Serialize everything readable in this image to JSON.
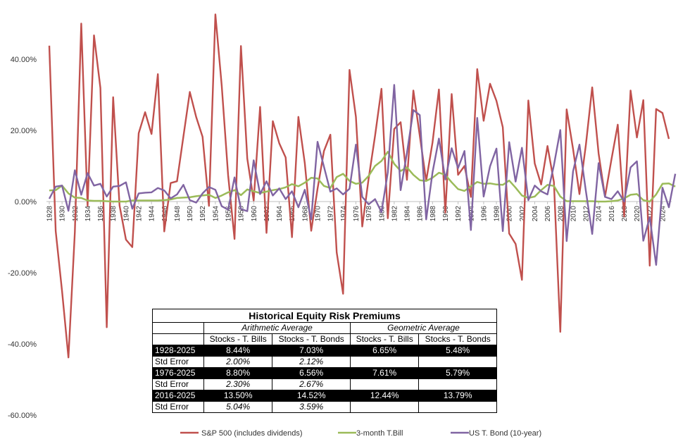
{
  "chart_data": {
    "type": "line",
    "x_tick_labels": [
      "1928",
      "1930",
      "1932",
      "1934",
      "1936",
      "1938",
      "1940",
      "1942",
      "1944",
      "1946",
      "1948",
      "1950",
      "1952",
      "1954",
      "1956",
      "1958",
      "1960",
      "1962",
      "1964",
      "1966",
      "1968",
      "1970",
      "1972",
      "1974",
      "1976",
      "1978",
      "1980",
      "1982",
      "1984",
      "1986",
      "1988",
      "1990",
      "1992",
      "1994",
      "1996",
      "1998",
      "2000",
      "2002",
      "2004",
      "2006",
      "2008",
      "2010",
      "2012",
      "2014",
      "2016",
      "2018",
      "2020",
      "2022",
      "2024"
    ],
    "y_tick_labels": [
      "40.00%",
      "20.00%",
      "0.00%",
      "-20.00%",
      "-40.00%",
      "-60.00%"
    ],
    "ylim": [
      -60,
      50
    ],
    "x_start": 1928,
    "series": [
      {
        "name": "S&P 500 (includes dividends)",
        "color": "#c0504d",
        "values": [
          43.8,
          -8.3,
          -25.1,
          -43.8,
          -8.6,
          50.0,
          -1.2,
          46.7,
          31.9,
          -35.3,
          29.3,
          -1.1,
          -10.7,
          -12.8,
          19.2,
          25.1,
          19.0,
          35.8,
          -8.4,
          5.2,
          5.7,
          18.3,
          30.8,
          23.7,
          18.2,
          -1.2,
          52.6,
          32.6,
          7.4,
          -10.5,
          43.7,
          12.1,
          0.3,
          26.6,
          -8.8,
          22.6,
          16.4,
          12.4,
          -10.0,
          23.8,
          10.8,
          -8.2,
          3.6,
          14.2,
          18.8,
          -14.3,
          -25.9,
          37.0,
          23.8,
          -7.0,
          6.5,
          18.5,
          31.7,
          -4.7,
          20.4,
          22.3,
          6.1,
          31.2,
          18.5,
          5.8,
          16.6,
          31.5,
          -3.1,
          30.2,
          7.5,
          10.0,
          1.3,
          37.2,
          22.7,
          33.1,
          28.3,
          20.9,
          -9.0,
          -11.9,
          -22.0,
          28.4,
          10.7,
          4.8,
          15.6,
          5.5,
          -36.6,
          25.9,
          14.8,
          2.1,
          15.9,
          32.1,
          13.5,
          1.4,
          11.8,
          21.6,
          -4.2,
          31.2,
          18.0,
          28.5,
          -18.0,
          26.0,
          24.9,
          17.6
        ]
      },
      {
        "name": "3-month T.Bill",
        "color": "#9bbb59",
        "values": [
          3.1,
          3.2,
          4.5,
          2.3,
          1.1,
          1.0,
          0.3,
          0.2,
          0.2,
          0.1,
          0.0,
          0.0,
          0.0,
          0.3,
          0.3,
          0.3,
          0.3,
          0.3,
          0.4,
          0.6,
          1.0,
          1.1,
          1.2,
          1.5,
          1.7,
          1.9,
          1.0,
          1.7,
          2.6,
          3.2,
          1.8,
          3.4,
          2.9,
          2.4,
          2.8,
          3.2,
          3.5,
          4.0,
          4.9,
          4.3,
          5.3,
          6.7,
          6.5,
          4.4,
          3.8,
          6.9,
          7.8,
          5.8,
          5.0,
          5.3,
          7.2,
          10.0,
          11.4,
          14.0,
          10.6,
          8.6,
          9.6,
          7.5,
          6.0,
          5.8,
          6.7,
          8.1,
          7.5,
          5.4,
          3.5,
          3.0,
          4.3,
          5.5,
          5.0,
          5.1,
          4.8,
          4.7,
          5.9,
          3.9,
          1.7,
          1.0,
          1.4,
          3.2,
          4.7,
          4.4,
          1.4,
          0.1,
          0.1,
          0.1,
          0.1,
          0.1,
          0.0,
          0.0,
          0.1,
          0.3,
          0.9,
          1.9,
          2.1,
          0.4,
          0.0,
          2.0,
          5.0,
          5.1,
          4.2
        ]
      },
      {
        "name": "US T. Bond (10-year)",
        "color": "#8064a2",
        "values": [
          0.8,
          4.2,
          4.5,
          -2.6,
          8.8,
          1.9,
          8.0,
          4.5,
          5.0,
          1.4,
          4.2,
          4.4,
          5.4,
          -2.0,
          2.3,
          2.5,
          2.6,
          3.8,
          3.1,
          0.9,
          2.0,
          4.7,
          0.4,
          -0.3,
          2.3,
          4.1,
          3.3,
          -1.3,
          -2.3,
          6.8,
          -2.1,
          -2.7,
          11.6,
          2.1,
          5.7,
          1.7,
          3.7,
          0.7,
          2.9,
          -1.6,
          3.3,
          -5.0,
          16.8,
          9.8,
          2.8,
          3.7,
          2.0,
          3.6,
          16.0,
          1.3,
          -0.8,
          0.7,
          -3.0,
          8.2,
          32.8,
          3.2,
          13.7,
          25.7,
          24.3,
          -5.0,
          8.2,
          17.7,
          6.2,
          15.0,
          9.4,
          14.2,
          -8.0,
          23.5,
          1.4,
          9.9,
          14.9,
          -8.3,
          16.7,
          5.6,
          15.1,
          0.4,
          4.5,
          2.9,
          2.0,
          10.2,
          20.1,
          -11.1,
          8.5,
          16.0,
          3.0,
          -9.1,
          10.8,
          1.3,
          0.7,
          2.9,
          -0.0,
          9.6,
          11.3,
          -11.0,
          -4.4,
          -17.8,
          3.9,
          -1.6,
          7.8
        ]
      }
    ],
    "table": {
      "title": "Historical Equity Risk Premiums",
      "group_headers": [
        "Arithmetic Average",
        "Geometric Average"
      ],
      "column_headers": [
        "Stocks - T. Bills",
        "Stocks - T. Bonds",
        "Stocks - T. Bills",
        "Stocks - T. Bonds"
      ],
      "rows": [
        {
          "label": "1928-2025",
          "values": [
            "8.44%",
            "7.03%",
            "6.65%",
            "5.48%"
          ]
        },
        {
          "label": "Std Error",
          "values": [
            "2.00%",
            "2.12%",
            "",
            ""
          ]
        },
        {
          "label": "1976-2025",
          "values": [
            "8.80%",
            "6.56%",
            "7.61%",
            "5.79%"
          ]
        },
        {
          "label": "Std Error",
          "values": [
            "2.30%",
            "2.67%",
            "",
            ""
          ]
        },
        {
          "label": "2016-2025",
          "values": [
            "13.50%",
            "14.52%",
            "12.44%",
            "13.79%"
          ]
        },
        {
          "label": "Std Error",
          "values": [
            "5.04%",
            "3.59%",
            "",
            ""
          ]
        }
      ]
    }
  }
}
